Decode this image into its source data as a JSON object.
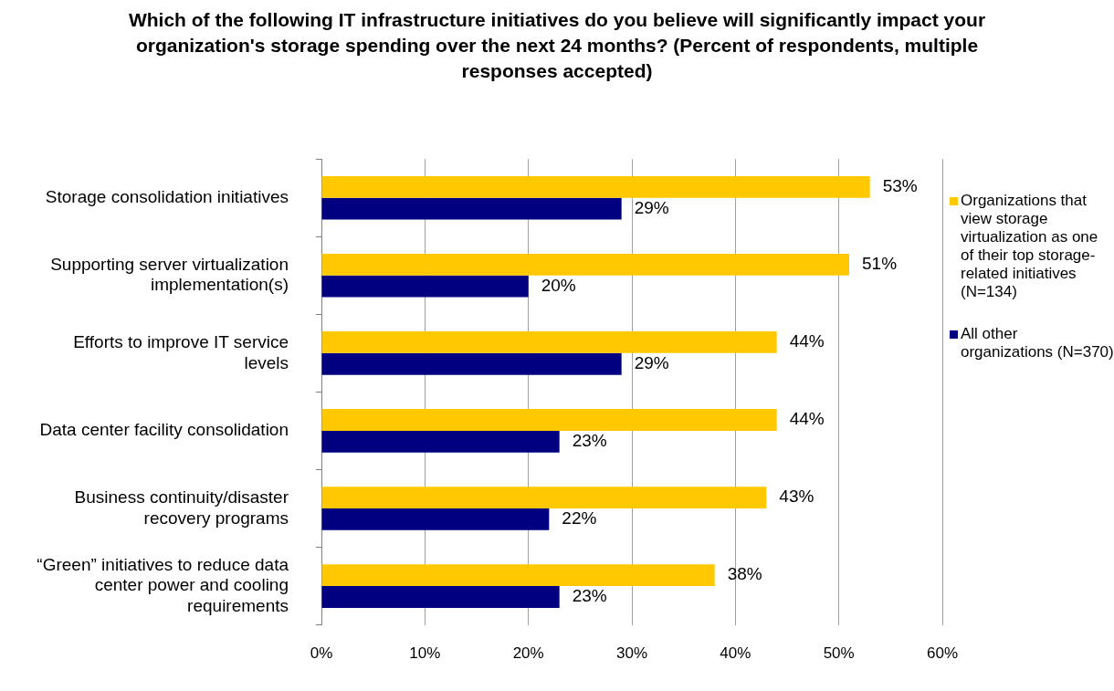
{
  "chart_data": {
    "type": "bar",
    "orientation": "horizontal",
    "title": "Which of the following IT infrastructure initiatives do you believe will significantly impact your organization's storage spending over the next 24 months? (Percent of respondents, multiple responses accepted)",
    "categories": [
      "Storage consolidation initiatives",
      "Supporting server virtualization implementation(s)",
      "Efforts to improve IT service levels",
      "Data center facility consolidation",
      "Business continuity/disaster recovery programs",
      "“Green” initiatives to reduce data center power and cooling requirements"
    ],
    "series": [
      {
        "name": "Organizations that view storage virtualization as one of their top storage-related initiatives (N=134)",
        "color": "#ffc800",
        "values": [
          53,
          51,
          44,
          44,
          43,
          38
        ],
        "value_labels": [
          "53%",
          "51%",
          "44%",
          "44%",
          "43%",
          "38%"
        ]
      },
      {
        "name": "All other organizations (N=370)",
        "color": "#000080",
        "values": [
          29,
          20,
          29,
          23,
          22,
          23
        ],
        "value_labels": [
          "29%",
          "20%",
          "29%",
          "23%",
          "22%",
          "23%"
        ]
      }
    ],
    "xlim": [
      0,
      60
    ],
    "xticks": [
      {
        "value": 0,
        "label": "0%"
      },
      {
        "value": 10,
        "label": "10%"
      },
      {
        "value": 20,
        "label": "20%"
      },
      {
        "value": 30,
        "label": "30%"
      },
      {
        "value": 40,
        "label": "40%"
      },
      {
        "value": 50,
        "label": "50%"
      },
      {
        "value": 60,
        "label": "60%"
      }
    ],
    "grid": "x",
    "legend": "right"
  }
}
